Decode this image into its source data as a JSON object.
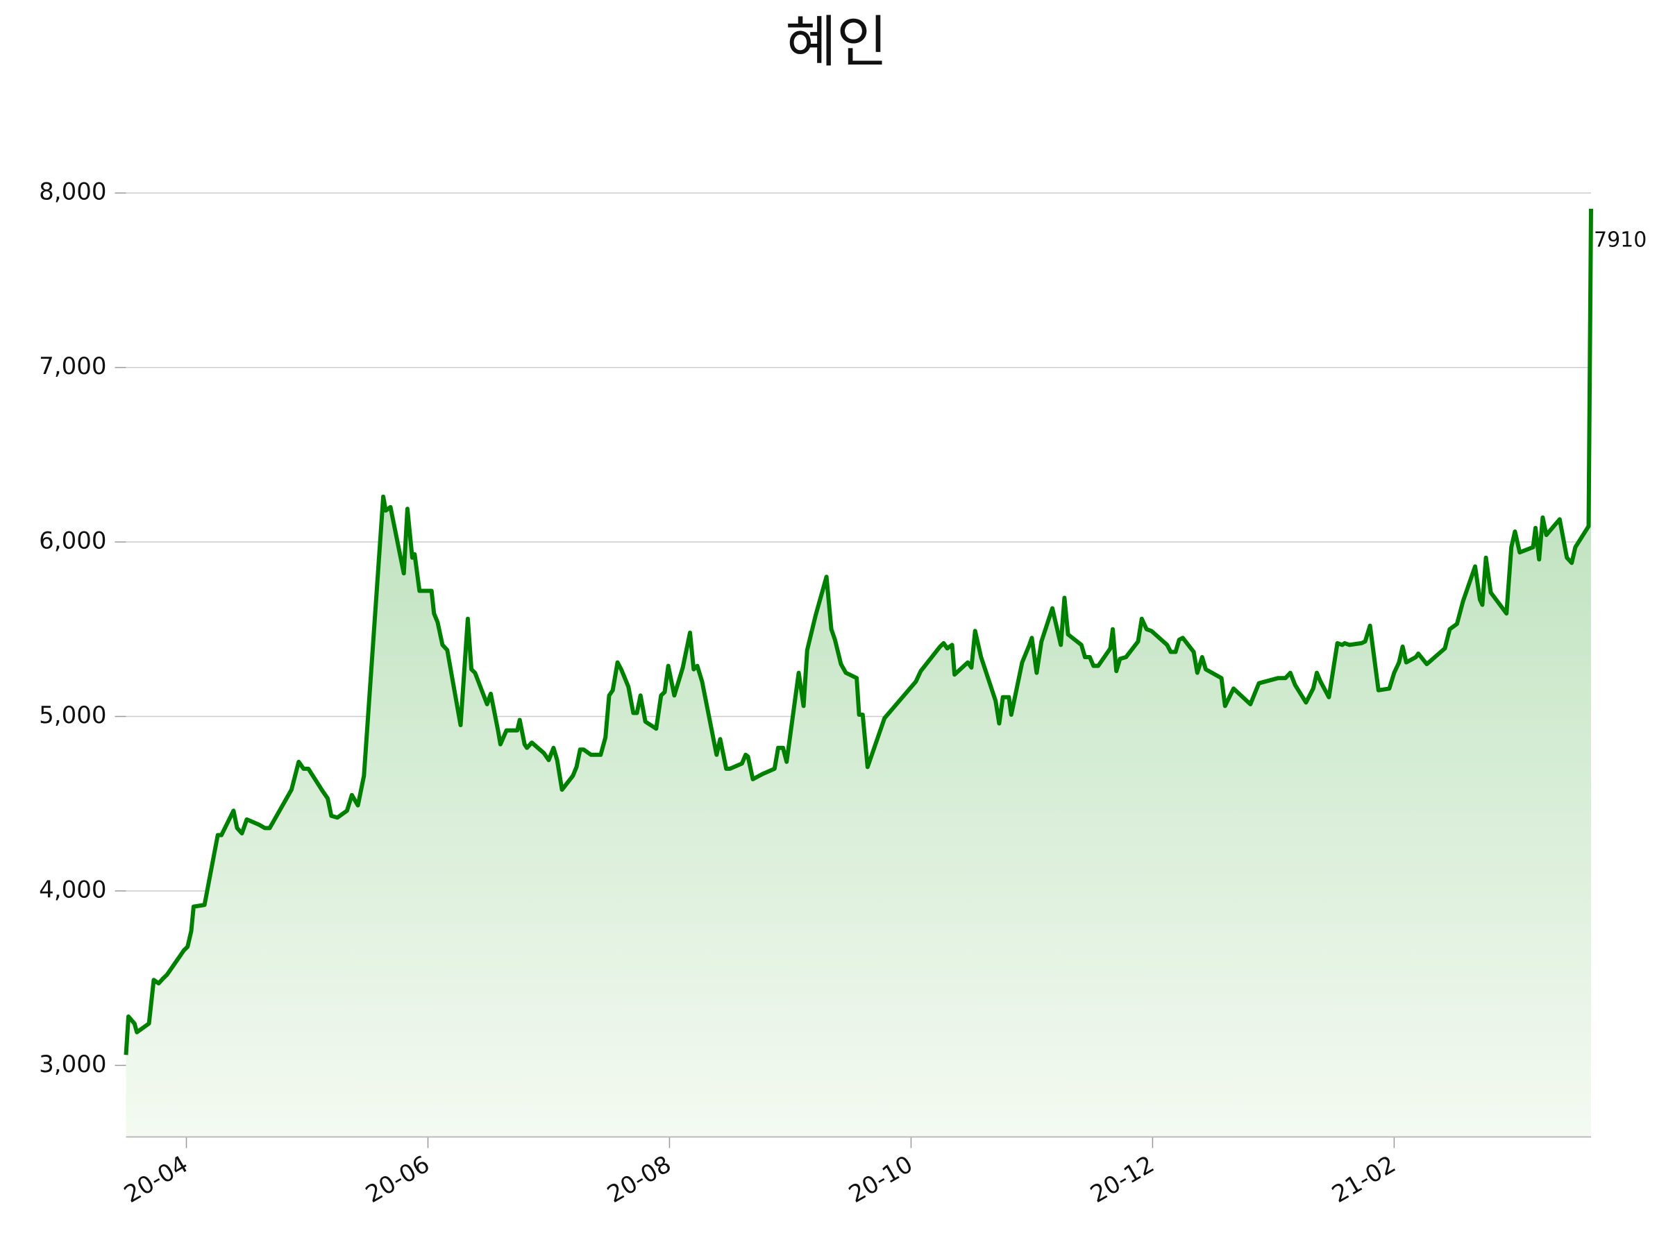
{
  "chart_data": {
    "type": "line",
    "title": "혜인",
    "color": "#008000",
    "grid": true,
    "xlim": [
      3.5,
      15.63
    ],
    "ylim": [
      2590,
      8100
    ],
    "xticks": [
      {
        "value": 4,
        "label": "20-04"
      },
      {
        "value": 6,
        "label": "20-06"
      },
      {
        "value": 8,
        "label": "20-08"
      },
      {
        "value": 10,
        "label": "20-10"
      },
      {
        "value": 12,
        "label": "20-12"
      },
      {
        "value": 14,
        "label": "21-02"
      }
    ],
    "yticks": [
      {
        "value": 3000,
        "label": "3,000"
      },
      {
        "value": 4000,
        "label": "4,000"
      },
      {
        "value": 5000,
        "label": "5,000"
      },
      {
        "value": 6000,
        "label": "6,000"
      },
      {
        "value": 7000,
        "label": "7,000"
      },
      {
        "value": 8000,
        "label": "8,000"
      }
    ],
    "x": [
      3.5,
      3.52,
      3.57,
      3.59,
      3.69,
      3.73,
      3.77,
      3.81,
      3.84,
      3.92,
      3.98,
      4.01,
      4.04,
      4.06,
      4.15,
      4.26,
      4.29,
      4.39,
      4.42,
      4.46,
      4.5,
      4.6,
      4.65,
      4.69,
      4.87,
      4.93,
      4.97,
      5.01,
      5.13,
      5.17,
      5.2,
      5.25,
      5.33,
      5.37,
      5.42,
      5.47,
      5.63,
      5.65,
      5.69,
      5.8,
      5.83,
      5.87,
      5.89,
      5.93,
      6.03,
      6.05,
      6.08,
      6.12,
      6.16,
      6.27,
      6.33,
      6.36,
      6.39,
      6.49,
      6.52,
      6.58,
      6.6,
      6.65,
      6.7,
      6.74,
      6.76,
      6.8,
      6.82,
      6.86,
      6.96,
      7.0,
      7.04,
      7.07,
      7.11,
      7.2,
      7.23,
      7.26,
      7.29,
      7.35,
      7.43,
      7.47,
      7.5,
      7.53,
      7.57,
      7.6,
      7.66,
      7.7,
      7.73,
      7.76,
      7.8,
      7.89,
      7.93,
      7.96,
      7.99,
      8.04,
      8.11,
      8.17,
      8.2,
      8.23,
      8.27,
      8.39,
      8.42,
      8.47,
      8.5,
      8.6,
      8.63,
      8.65,
      8.69,
      8.77,
      8.87,
      8.9,
      8.94,
      8.97,
      9.07,
      9.11,
      9.14,
      9.21,
      9.3,
      9.34,
      9.37,
      9.42,
      9.46,
      9.55,
      9.57,
      9.6,
      9.64,
      9.68,
      9.78,
      10.04,
      10.08,
      10.24,
      10.27,
      10.3,
      10.34,
      10.36,
      10.47,
      10.5,
      10.53,
      10.58,
      10.7,
      10.73,
      10.76,
      10.81,
      10.83,
      10.92,
      10.98,
      11.0,
      11.04,
      11.08,
      11.17,
      11.24,
      11.27,
      11.3,
      11.41,
      11.44,
      11.48,
      11.51,
      11.55,
      11.65,
      11.67,
      11.7,
      11.73,
      11.78,
      11.88,
      11.91,
      11.95,
      11.99,
      12.12,
      12.15,
      12.19,
      12.22,
      12.25,
      12.34,
      12.37,
      12.41,
      12.44,
      12.57,
      12.6,
      12.67,
      12.81,
      12.88,
      13.04,
      13.1,
      13.14,
      13.18,
      13.27,
      13.33,
      13.36,
      13.39,
      13.46,
      13.53,
      13.57,
      13.59,
      13.63,
      13.73,
      13.76,
      13.8,
      13.87,
      13.96,
      14.0,
      14.04,
      14.07,
      14.1,
      14.18,
      14.2,
      14.27,
      14.42,
      14.46,
      14.52,
      14.57,
      14.67,
      14.71,
      14.73,
      14.76,
      14.8,
      14.93,
      14.97,
      15.0,
      15.04,
      15.15,
      15.17,
      15.2,
      15.23,
      15.26,
      15.37,
      15.43,
      15.47,
      15.5,
      15.61,
      15.63
    ],
    "values": [
      3060,
      3280,
      3240,
      3190,
      3240,
      3490,
      3470,
      3500,
      3520,
      3600,
      3660,
      3680,
      3770,
      3910,
      3920,
      4320,
      4320,
      4460,
      4360,
      4330,
      4410,
      4380,
      4360,
      4360,
      4580,
      4740,
      4700,
      4700,
      4570,
      4530,
      4430,
      4420,
      4460,
      4550,
      4490,
      4660,
      6260,
      6180,
      6200,
      5820,
      6190,
      5910,
      5930,
      5720,
      5720,
      5590,
      5540,
      5410,
      5380,
      4950,
      5560,
      5270,
      5250,
      5070,
      5130,
      4920,
      4840,
      4920,
      4920,
      4920,
      4980,
      4840,
      4820,
      4850,
      4790,
      4750,
      4820,
      4750,
      4580,
      4660,
      4710,
      4810,
      4810,
      4780,
      4780,
      4880,
      5120,
      5150,
      5310,
      5270,
      5170,
      5020,
      5020,
      5120,
      4970,
      4930,
      5120,
      5140,
      5290,
      5120,
      5280,
      5480,
      5270,
      5290,
      5200,
      4780,
      4870,
      4700,
      4700,
      4730,
      4780,
      4770,
      4640,
      4670,
      4700,
      4820,
      4820,
      4740,
      5250,
      5060,
      5380,
      5580,
      5800,
      5500,
      5440,
      5300,
      5250,
      5220,
      5010,
      5010,
      4710,
      4790,
      4990,
      5200,
      5260,
      5400,
      5420,
      5390,
      5410,
      5240,
      5310,
      5280,
      5490,
      5340,
      5090,
      4960,
      5110,
      5110,
      5010,
      5310,
      5410,
      5450,
      5250,
      5430,
      5620,
      5410,
      5680,
      5470,
      5410,
      5340,
      5340,
      5290,
      5290,
      5390,
      5500,
      5260,
      5330,
      5340,
      5430,
      5560,
      5500,
      5490,
      5410,
      5370,
      5370,
      5440,
      5450,
      5370,
      5250,
      5340,
      5270,
      5220,
      5060,
      5160,
      5070,
      5190,
      5220,
      5220,
      5250,
      5180,
      5080,
      5160,
      5250,
      5200,
      5110,
      5420,
      5410,
      5420,
      5410,
      5420,
      5430,
      5520,
      5150,
      5160,
      5250,
      5310,
      5400,
      5310,
      5340,
      5360,
      5300,
      5390,
      5500,
      5530,
      5660,
      5860,
      5670,
      5640,
      5910,
      5710,
      5590,
      5970,
      6060,
      5940,
      5970,
      6080,
      5900,
      6140,
      6040,
      6130,
      5910,
      5880,
      5970,
      6090,
      7910
    ]
  }
}
